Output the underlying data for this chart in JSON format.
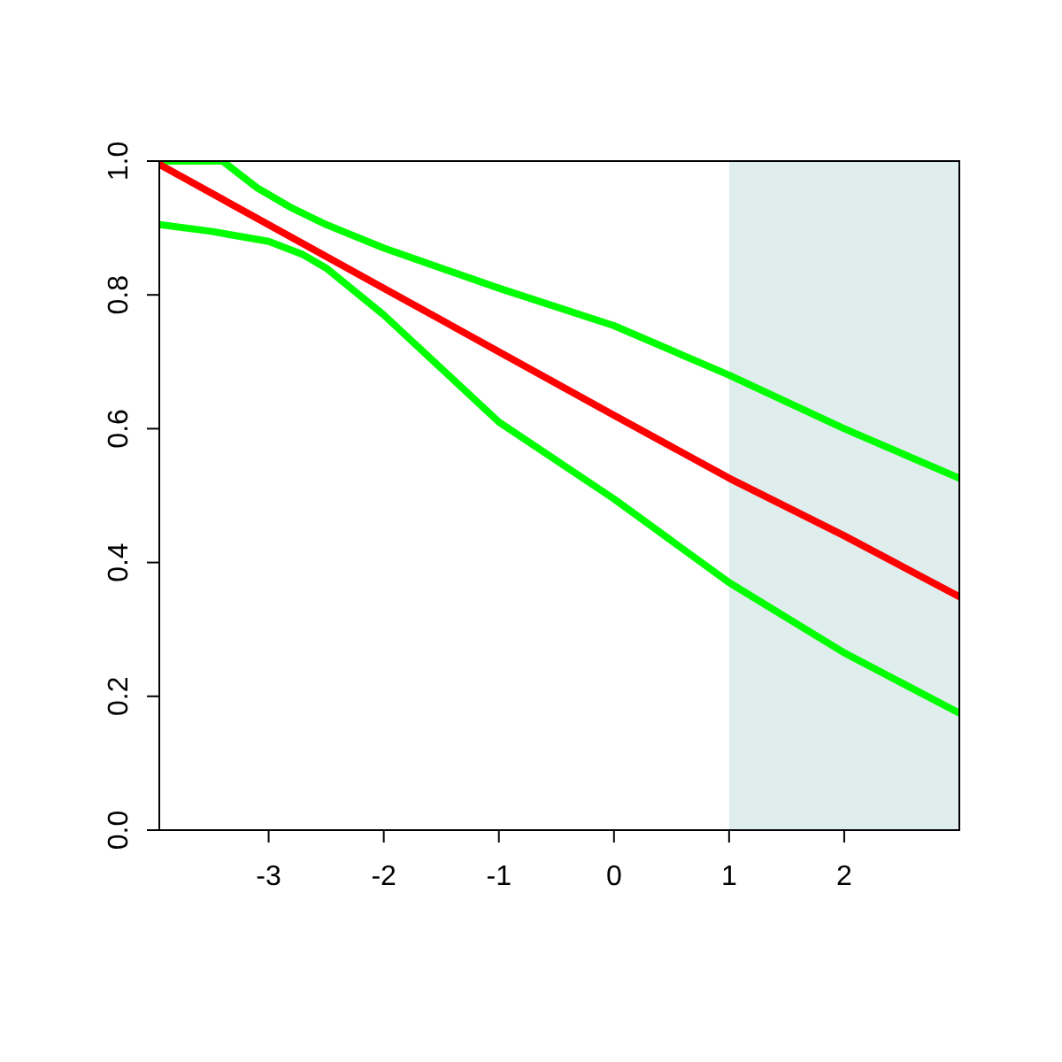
{
  "chart_data": {
    "type": "line",
    "xlim": [
      -3.95,
      3
    ],
    "ylim": [
      0,
      1
    ],
    "xticks": [
      -3,
      -2,
      -1,
      0,
      1,
      2
    ],
    "yticks": [
      {
        "value": 0,
        "label": "0.0"
      },
      {
        "value": 0.2,
        "label": "0.2"
      },
      {
        "value": 0.4,
        "label": "0.4"
      },
      {
        "value": 0.6,
        "label": "0.6"
      },
      {
        "value": 0.8,
        "label": "0.8"
      },
      {
        "value": 1,
        "label": "1.0"
      }
    ],
    "bands": [
      {
        "axis": "x",
        "from": 1,
        "to": 3,
        "color": "#dfeded"
      }
    ],
    "series": [
      {
        "color": "#00ff00",
        "x": [
          -3.95,
          -3.4,
          -3.1,
          -2.8,
          -2.5,
          -2,
          -1,
          0,
          1,
          2,
          3
        ],
        "values": [
          1,
          1,
          0.96,
          0.93,
          0.905,
          0.87,
          0.81,
          0.754,
          0.68,
          0.6,
          0.526
        ]
      },
      {
        "color": "#00ff00",
        "x": [
          -3.95,
          -3.5,
          -3,
          -2.7,
          -2.5,
          -2,
          -1.5,
          -1,
          0,
          1,
          2,
          3
        ],
        "values": [
          0.905,
          0.895,
          0.88,
          0.86,
          0.84,
          0.77,
          0.69,
          0.61,
          0.495,
          0.37,
          0.265,
          0.175
        ]
      },
      {
        "color": "#ff0000",
        "x": [
          -3.95,
          -2,
          -1,
          0,
          1,
          2,
          3
        ],
        "values": [
          0.995,
          0.81,
          0.715,
          0.62,
          0.526,
          0.44,
          0.349
        ]
      }
    ]
  }
}
